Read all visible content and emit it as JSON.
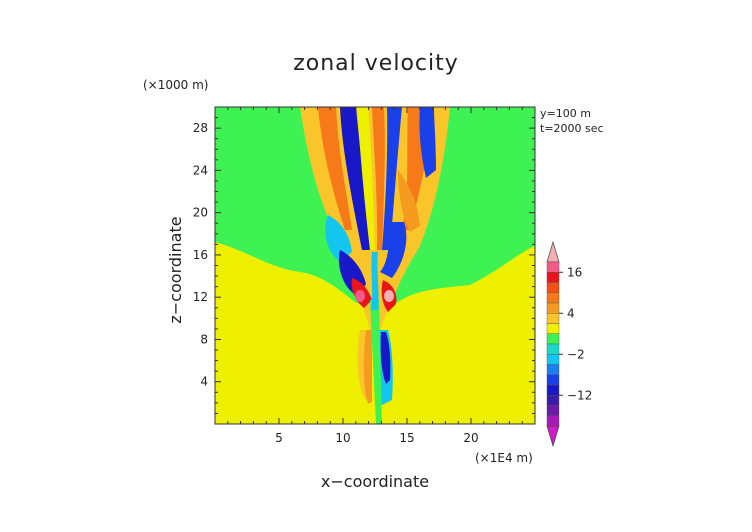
{
  "chart_data": {
    "type": "heatmap",
    "title": "zonal velocity",
    "xlabel": "x−coordinate",
    "ylabel": "z−coordinate",
    "x_unit": "(×1E4 m)",
    "y_unit": "(×1000 m)",
    "info_lines": [
      "y=100 m",
      "t=2000 sec"
    ],
    "x_ticks": [
      5,
      10,
      15,
      20
    ],
    "y_ticks": [
      4,
      8,
      12,
      16,
      20,
      24,
      28
    ],
    "xlim": [
      0,
      25
    ],
    "ylim": [
      0,
      30
    ],
    "colorbar": {
      "tick_labels": [
        "16",
        "4",
        "−2",
        "−12"
      ],
      "tick_values": [
        16,
        4,
        -2,
        -12
      ],
      "levels": [
        {
          "value": 20,
          "color": "#f7b0b0"
        },
        {
          "value": 18,
          "color": "#f45a88"
        },
        {
          "value": 16,
          "color": "#e8161b"
        },
        {
          "value": 12,
          "color": "#f45016"
        },
        {
          "value": 9,
          "color": "#f77a1a"
        },
        {
          "value": 6,
          "color": "#f59b1f"
        },
        {
          "value": 4,
          "color": "#f9c52a"
        },
        {
          "value": 1,
          "color": "#eef000"
        },
        {
          "value": 0,
          "color": "#3ef254"
        },
        {
          "value": -1,
          "color": "#1ad7c7"
        },
        {
          "value": -2,
          "color": "#12c6f0"
        },
        {
          "value": -4,
          "color": "#1a80f0"
        },
        {
          "value": -7,
          "color": "#1a40ea"
        },
        {
          "value": -10,
          "color": "#1818c8"
        },
        {
          "value": -12,
          "color": "#3a1aa8"
        },
        {
          "value": -15,
          "color": "#6b1aa8"
        },
        {
          "value": -18,
          "color": "#a81ab8"
        },
        {
          "value": -20,
          "color": "#d01ac8"
        }
      ]
    },
    "background_levels": {
      "lower_region": "#eef000",
      "upper_region": "#3ef254"
    }
  }
}
